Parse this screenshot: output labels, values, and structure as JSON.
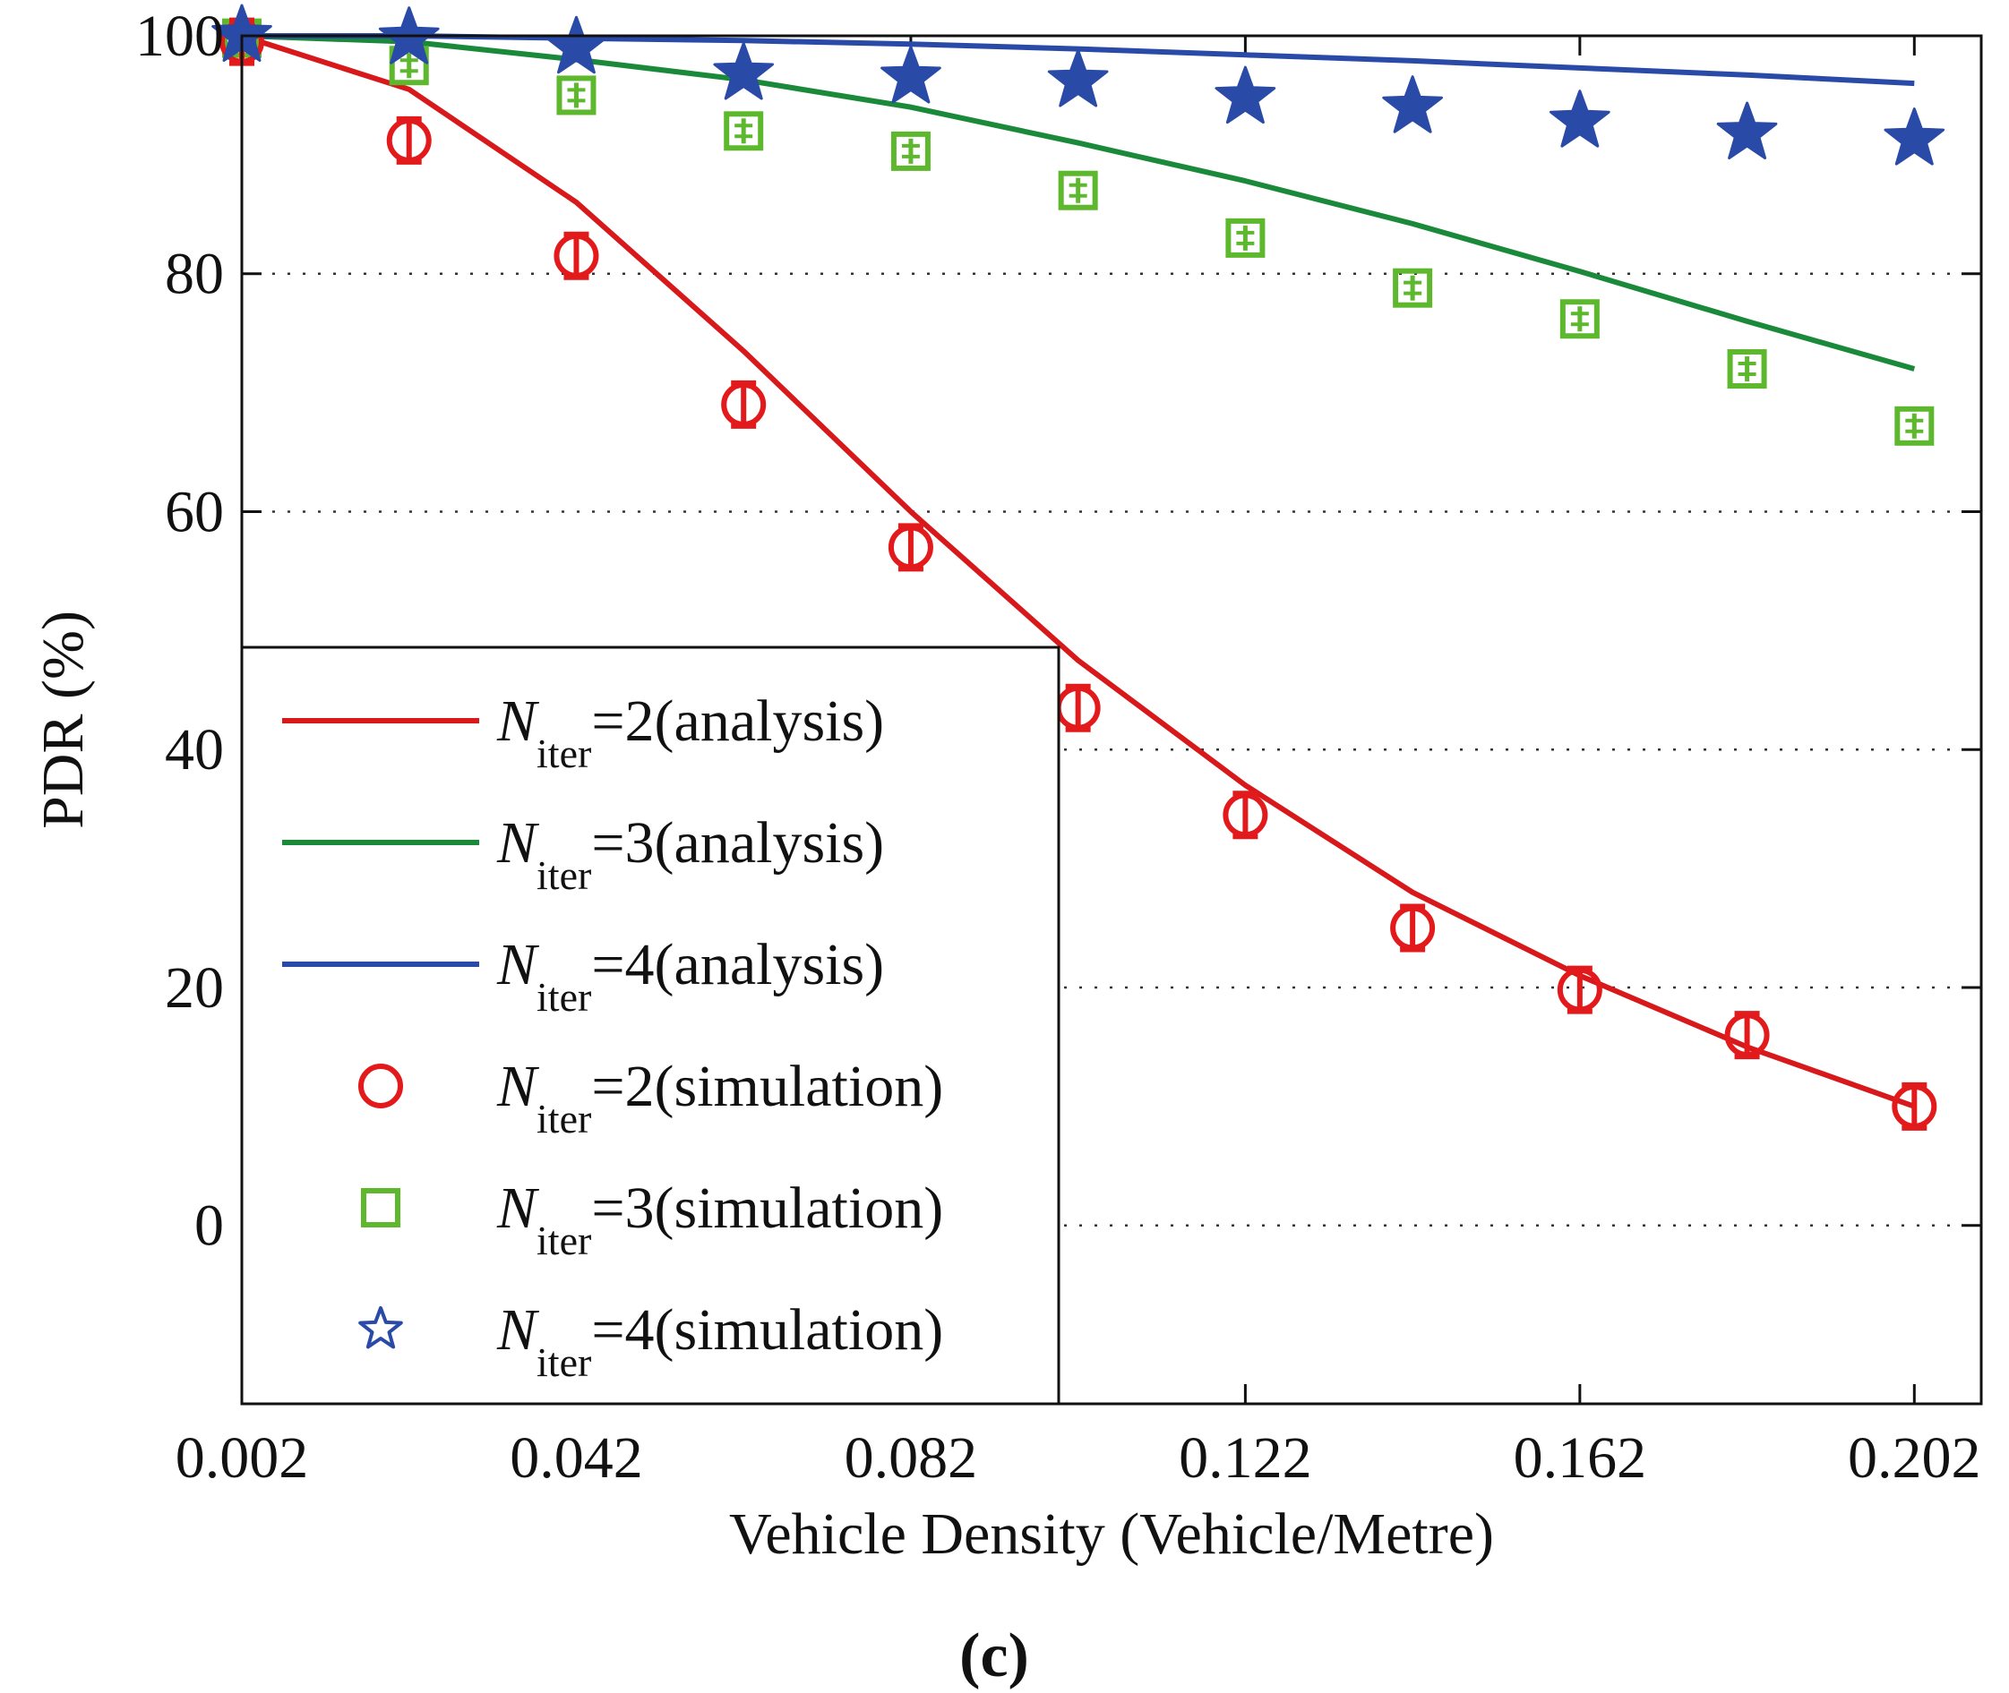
{
  "chart_data": {
    "type": "line",
    "title": "",
    "xlabel": "Vehicle Density (Vehicle/Metre)",
    "ylabel": "PDR (%)",
    "caption": "(c)",
    "xlim": [
      0.002,
      0.21
    ],
    "ylim": [
      -15,
      100
    ],
    "x_ticks": [
      0.002,
      0.042,
      0.082,
      0.122,
      0.162,
      0.202
    ],
    "x_tick_labels": [
      "0.002",
      "0.042",
      "0.082",
      "0.122",
      "0.162",
      "0.202"
    ],
    "y_ticks": [
      0,
      20,
      40,
      60,
      80,
      100
    ],
    "y_tick_labels": [
      "0",
      "20",
      "40",
      "60",
      "80",
      "100"
    ],
    "grid": "horizontal dotted",
    "legend_position": "lower-left",
    "x": [
      0.002,
      0.022,
      0.042,
      0.062,
      0.082,
      0.102,
      0.122,
      0.142,
      0.162,
      0.182,
      0.202
    ],
    "series": [
      {
        "name_main": "N",
        "name_sub": "iter",
        "name_suffix": "=2(analysis)",
        "kind": "line",
        "color": "#d7191c",
        "values": [
          100,
          95.5,
          86,
          73.5,
          60,
          47.5,
          37,
          28,
          21,
          15,
          10
        ]
      },
      {
        "name_main": "N",
        "name_sub": "iter",
        "name_suffix": "=3(analysis)",
        "kind": "line",
        "color": "#1a8a3a",
        "values": [
          100,
          99.5,
          98,
          96.3,
          94,
          91,
          87.8,
          84.2,
          80.2,
          76,
          72
        ]
      },
      {
        "name_main": "N",
        "name_sub": "iter",
        "name_suffix": "=4(analysis)",
        "kind": "line",
        "color": "#2a4aa8",
        "values": [
          100,
          100,
          99.8,
          99.6,
          99.3,
          98.9,
          98.4,
          97.9,
          97.3,
          96.7,
          96
        ]
      },
      {
        "name_main": "N",
        "name_sub": "iter",
        "name_suffix": "=2(simulation)",
        "kind": "circle",
        "color": "#e31a1c",
        "values": [
          99.5,
          91.2,
          81.5,
          69,
          57,
          43.5,
          34.5,
          25,
          19.8,
          16,
          10
        ]
      },
      {
        "name_main": "N",
        "name_sub": "iter",
        "name_suffix": "=3(simulation)",
        "kind": "square",
        "color": "#5db82e",
        "values": [
          99.8,
          97.5,
          95,
          92,
          90.3,
          87,
          83,
          78.8,
          76.2,
          72,
          67.2
        ]
      },
      {
        "name_main": "N",
        "name_sub": "iter",
        "name_suffix": "=4(simulation)",
        "kind": "star",
        "color": "#2a4aa8",
        "values": [
          100,
          99.8,
          99,
          96.8,
          96.5,
          96.2,
          94.8,
          94,
          92.8,
          91.8,
          91.3
        ]
      }
    ]
  }
}
